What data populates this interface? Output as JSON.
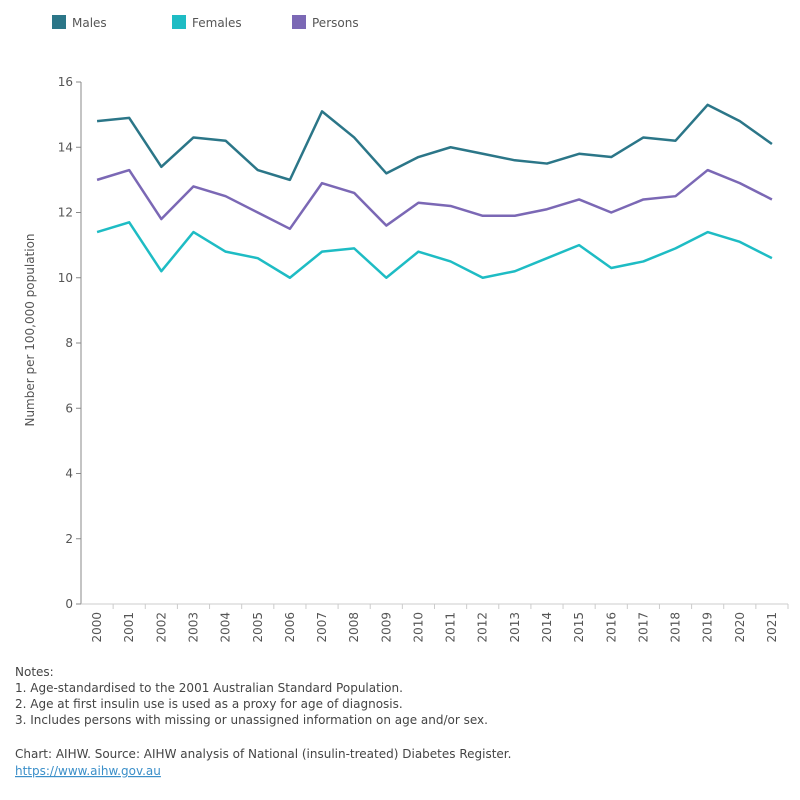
{
  "chart_data": {
    "type": "line",
    "y_label": "Number per 100,000 population",
    "categories": [
      "2000",
      "2001",
      "2002",
      "2003",
      "2004",
      "2005",
      "2006",
      "2007",
      "2008",
      "2009",
      "2010",
      "2011",
      "2012",
      "2013",
      "2014",
      "2015",
      "2016",
      "2017",
      "2018",
      "2019",
      "2020",
      "2021"
    ],
    "series": [
      {
        "name": "Males",
        "color": "#2b7688",
        "values": [
          14.8,
          14.9,
          13.4,
          14.3,
          14.2,
          13.3,
          13.0,
          15.1,
          14.3,
          13.2,
          13.7,
          14.0,
          13.8,
          13.6,
          13.5,
          13.8,
          13.7,
          14.3,
          14.2,
          15.3,
          14.8,
          14.1
        ]
      },
      {
        "name": "Females",
        "color": "#1ebcc4",
        "values": [
          11.4,
          11.7,
          10.2,
          11.4,
          10.8,
          10.6,
          10.0,
          10.8,
          10.9,
          10.0,
          10.8,
          10.5,
          10.0,
          10.2,
          10.6,
          11.0,
          10.3,
          10.5,
          10.9,
          11.4,
          11.1,
          10.6
        ]
      },
      {
        "name": "Persons",
        "color": "#7b68b5",
        "values": [
          13.0,
          13.3,
          11.8,
          12.8,
          12.5,
          12.0,
          11.5,
          12.9,
          12.6,
          11.6,
          12.3,
          12.2,
          11.9,
          11.9,
          12.1,
          12.4,
          12.0,
          12.4,
          12.5,
          13.3,
          12.9,
          12.4
        ]
      }
    ],
    "ylim": [
      0,
      16
    ],
    "yticks": [
      0,
      2,
      4,
      6,
      8,
      10,
      12,
      14,
      16
    ],
    "notes_title": "Notes:",
    "notes": [
      "1. Age-standardised to the 2001 Australian Standard Population.",
      "2. Age at first insulin use is used as a proxy for age of diagnosis.",
      "3. Includes persons with missing or unassigned information on age and/or sex."
    ],
    "source": "Chart: AIHW. Source: AIHW analysis of National (insulin-treated) Diabetes Register.",
    "link": "https://www.aihw.gov.au"
  }
}
